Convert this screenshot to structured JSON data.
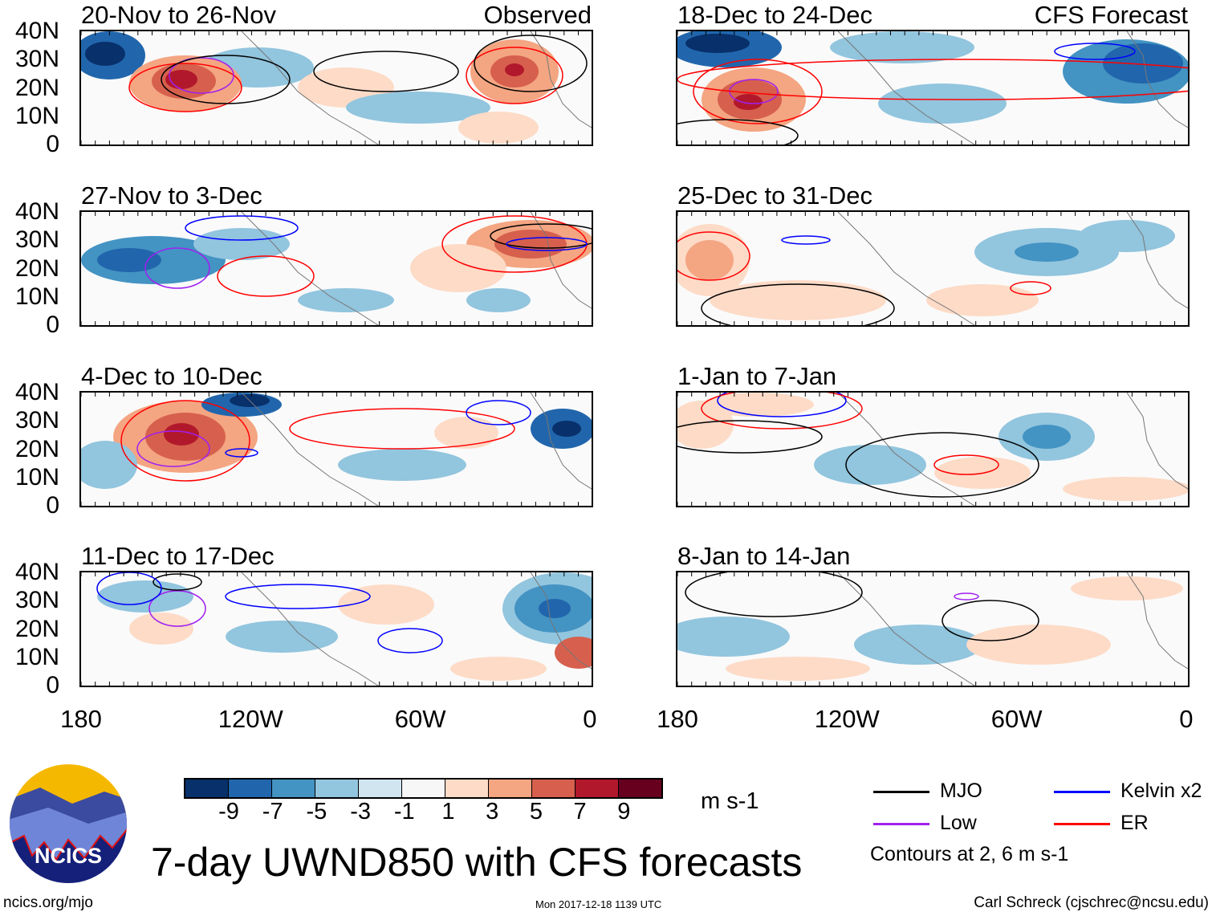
{
  "panels": [
    {
      "title": "20-Nov to 26-Nov",
      "label": "Observed"
    },
    {
      "title": "27-Nov to 3-Dec",
      "label": ""
    },
    {
      "title": "4-Dec to 10-Dec",
      "label": ""
    },
    {
      "title": "11-Dec to 17-Dec",
      "label": ""
    },
    {
      "title": "18-Dec to 24-Dec",
      "label": "CFS Forecast"
    },
    {
      "title": "25-Dec to 31-Dec",
      "label": ""
    },
    {
      "title": "1-Jan to 7-Jan",
      "label": ""
    },
    {
      "title": "8-Jan to 14-Jan",
      "label": ""
    }
  ],
  "y_ticks": [
    "40N",
    "30N",
    "20N",
    "10N",
    "0"
  ],
  "x_ticks": [
    "180",
    "120W",
    "60W",
    "0"
  ],
  "colorbar": {
    "colors": [
      "#08306b",
      "#2166ac",
      "#4393c3",
      "#92c5de",
      "#d1e5f0",
      "#f7f7f7",
      "#fddbc7",
      "#f4a582",
      "#d6604d",
      "#b2182b",
      "#67001f"
    ],
    "labels": [
      "-9",
      "-7",
      "-5",
      "-3",
      "-1",
      "1",
      "3",
      "5",
      "7",
      "9"
    ],
    "units": "m s-1"
  },
  "legend": {
    "items": [
      {
        "label": "MJO",
        "color": "#000000"
      },
      {
        "label": "Kelvin x2",
        "color": "#0000ff"
      },
      {
        "label": "Low",
        "color": "#a020f0"
      },
      {
        "label": "ER",
        "color": "#ff0000"
      }
    ],
    "note": "Contours at 2, 6 m s-1"
  },
  "logo_text": "NCICS",
  "main_title": "7-day UWND850 with CFS forecasts",
  "footer": {
    "left": "ncics.org/mjo",
    "center": "Mon 2017-12-18 1139 UTC",
    "right": "Carl Schreck (cjschrec@ncsu.edu)"
  }
}
